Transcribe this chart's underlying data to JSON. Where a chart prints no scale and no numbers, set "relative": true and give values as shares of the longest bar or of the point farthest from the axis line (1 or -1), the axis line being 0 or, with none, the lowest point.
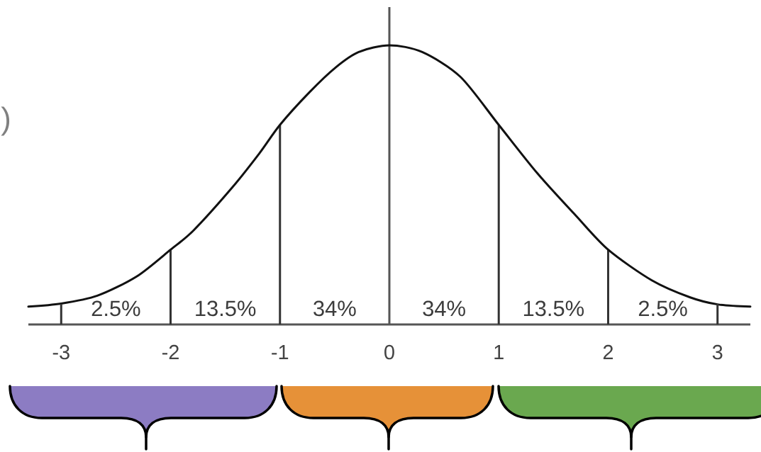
{
  "chart_data": {
    "type": "line",
    "relative": true,
    "x": [
      -3.3,
      -3,
      -2.67,
      -2.31,
      -2,
      -1.79,
      -1.44,
      -1.19,
      -1,
      -0.73,
      -0.49,
      -0.28,
      0,
      0.3,
      0.65,
      1,
      1.35,
      1.7,
      2,
      2.4,
      2.75,
      3,
      3.3
    ],
    "values": [
      0.064,
      0.075,
      0.103,
      0.172,
      0.268,
      0.337,
      0.489,
      0.612,
      0.715,
      0.832,
      0.921,
      0.976,
      1,
      0.976,
      0.887,
      0.715,
      0.543,
      0.392,
      0.268,
      0.158,
      0.097,
      0.072,
      0.064
    ],
    "color": "#111111",
    "line_style": "solid",
    "xlim": [
      -3.3,
      3.3
    ],
    "xticks": [
      -3,
      -2,
      -1,
      0,
      1,
      2,
      3
    ],
    "ref_lines": [
      {
        "axis": "x",
        "value": -2,
        "color": "#333333"
      },
      {
        "axis": "x",
        "value": -1,
        "color": "#333333"
      },
      {
        "axis": "x",
        "value": 1,
        "color": "#333333"
      },
      {
        "axis": "x",
        "value": 2,
        "color": "#333333"
      }
    ],
    "annotations": [
      ")",
      "2.5%",
      "13.5%",
      "34%",
      "34%",
      "13.5%",
      "2.5%"
    ]
  }
}
